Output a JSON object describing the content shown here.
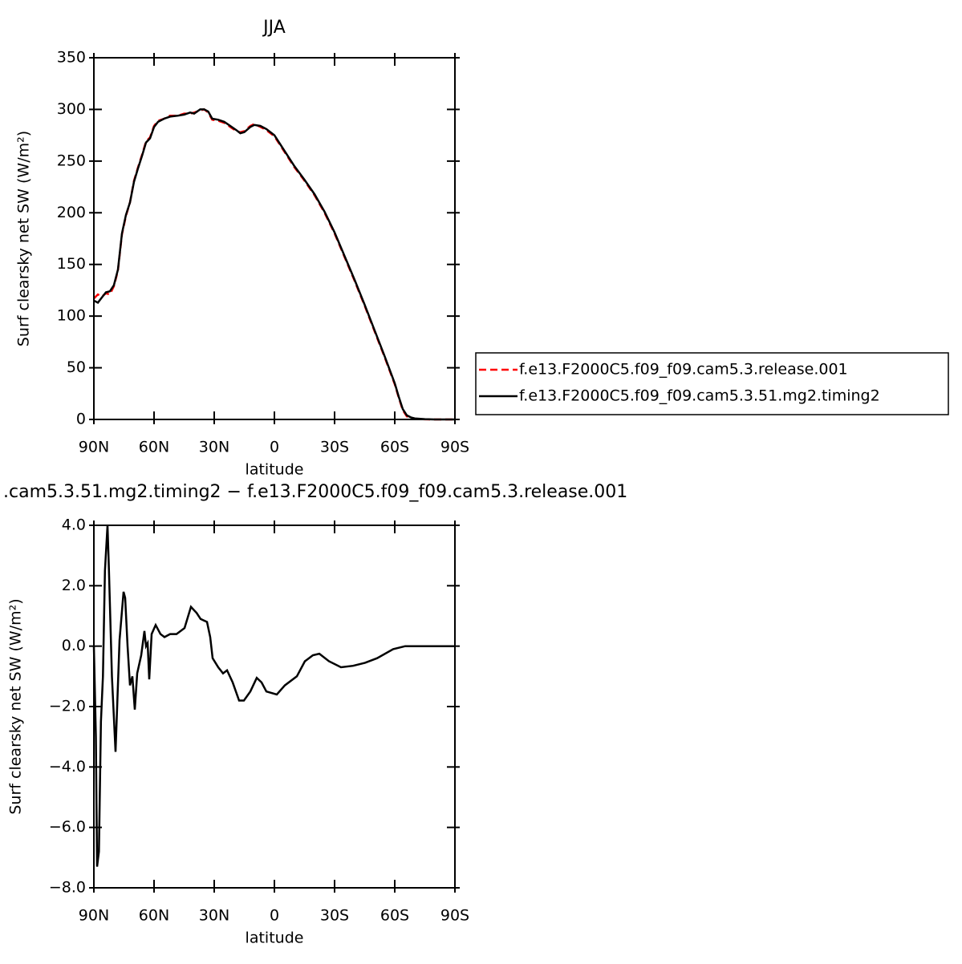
{
  "chart_data": [
    {
      "type": "line",
      "title": "JJA",
      "xlabel": "latitude",
      "ylabel": "Surf clearsky net SW (W/m²)",
      "x": [
        90,
        88,
        86,
        84,
        82,
        80,
        78,
        76,
        74,
        72,
        70,
        68,
        66,
        64,
        62,
        60,
        58,
        55,
        52,
        48,
        45,
        42,
        40,
        37,
        35,
        33,
        31,
        28,
        25,
        22,
        19,
        17,
        15,
        12,
        10,
        7,
        4,
        0,
        -3,
        -6,
        -10,
        -15,
        -20,
        -25,
        -30,
        -35,
        -40,
        -45,
        -50,
        -55,
        -60,
        -62,
        -64,
        -66,
        -68,
        -70,
        -75,
        -80,
        -90
      ],
      "series": [
        {
          "name": "f.e13.F2000C5.f09_f09.cam5.3.release.001",
          "color": "#ff0000",
          "line_style": "dashed",
          "values": [
            117,
            121,
            119,
            122,
            121,
            129,
            144,
            179,
            197,
            210,
            231,
            244,
            256,
            269,
            273,
            284,
            289,
            291,
            294,
            294,
            296,
            296,
            297,
            299,
            300,
            297,
            290,
            289,
            287,
            283,
            279,
            278,
            279,
            284,
            286,
            283,
            280,
            274,
            265,
            256,
            244,
            231,
            217,
            200,
            180,
            157,
            134,
            110,
            85,
            60,
            34,
            21,
            9,
            3,
            1.5,
            0.5,
            0.1,
            0,
            0
          ]
        },
        {
          "name": "f.e13.F2000C5.f09_f09.cam5.3.51.mg2.timing2",
          "color": "#000000",
          "line_style": "solid",
          "values": [
            115,
            113,
            118,
            123,
            124,
            130,
            145,
            180,
            198,
            210,
            230,
            243,
            255,
            268,
            272,
            283,
            288,
            291,
            293,
            294,
            295,
            297,
            296,
            300,
            300,
            298,
            291,
            290,
            288,
            284,
            280,
            277,
            278,
            283,
            285,
            284,
            281,
            275,
            266,
            257,
            245,
            232,
            218,
            201,
            181,
            158,
            135,
            111,
            86,
            61,
            35,
            22,
            10,
            4,
            2,
            1,
            0.3,
            0,
            0
          ]
        }
      ],
      "xlim": [
        90,
        -90
      ],
      "xticks": [
        {
          "value": 90,
          "label": "90N"
        },
        {
          "value": 60,
          "label": "60N"
        },
        {
          "value": 30,
          "label": "30N"
        },
        0,
        {
          "value": -30,
          "label": "30S"
        },
        {
          "value": -60,
          "label": "60S"
        },
        {
          "value": -90,
          "label": "90S"
        }
      ],
      "ylim": [
        0,
        350
      ],
      "yticks": [
        0,
        50,
        100,
        150,
        200,
        250,
        300,
        350
      ],
      "legend": "right"
    },
    {
      "type": "line",
      "title": ".cam5.3.51.mg2.timing2 − f.e13.F2000C5.f09_f09.cam5.3.release.001",
      "xlabel": "latitude",
      "ylabel": "Surf clearsky net SW (W/m²)",
      "x": [
        90,
        89,
        88.4,
        87.5,
        86.5,
        85.5,
        84.5,
        83.2,
        82.5,
        81,
        79.2,
        77.2,
        75.2,
        74.4,
        73.2,
        72,
        70.8,
        69.6,
        68.4,
        66.4,
        64.8,
        64,
        63.2,
        62.4,
        61.2,
        59.2,
        56.8,
        54.8,
        52,
        48.8,
        44.8,
        41.6,
        38.8,
        36.8,
        33.6,
        32,
        30.8,
        28,
        25.6,
        23.6,
        20.8,
        17.6,
        15.2,
        12,
        8.8,
        6.4,
        4,
        -1.2,
        -5.2,
        -11.2,
        -15.2,
        -19.2,
        -22.4,
        -27.2,
        -33.2,
        -39.2,
        -45.2,
        -51.2,
        -59.2,
        -65.2,
        -90
      ],
      "values": [
        0,
        -3,
        -7.3,
        -6.8,
        -2.5,
        -1,
        2.5,
        4,
        2.5,
        -1,
        -3.5,
        0.2,
        1.8,
        1.6,
        0,
        -1.3,
        -1,
        -2.1,
        -0.9,
        -0.3,
        0.5,
        0,
        0.1,
        -1.1,
        0.4,
        0.7,
        0.4,
        0.3,
        0.4,
        0.4,
        0.6,
        1.3,
        1.1,
        0.9,
        0.8,
        0.3,
        -0.4,
        -0.7,
        -0.9,
        -0.8,
        -1.2,
        -1.8,
        -1.8,
        -1.5,
        -1.05,
        -1.2,
        -1.5,
        -1.6,
        -1.3,
        -1,
        -0.5,
        -0.3,
        -0.25,
        -0.5,
        -0.7,
        -0.65,
        -0.55,
        -0.4,
        -0.1,
        0,
        0
      ],
      "color": "#000000",
      "xlim": [
        90,
        -90
      ],
      "xticks": [
        {
          "value": 90,
          "label": "90N"
        },
        {
          "value": 60,
          "label": "60N"
        },
        {
          "value": 30,
          "label": "30N"
        },
        0,
        {
          "value": -30,
          "label": "30S"
        },
        {
          "value": -60,
          "label": "60S"
        },
        {
          "value": -90,
          "label": "90S"
        }
      ],
      "ylim": [
        -8,
        4
      ],
      "yticks": [
        {
          "value": -8,
          "label": "−8.0"
        },
        {
          "value": -6,
          "label": "−6.0"
        },
        {
          "value": -4,
          "label": "−4.0"
        },
        {
          "value": -2,
          "label": "−2.0"
        },
        {
          "value": 0,
          "label": "0.0"
        },
        {
          "value": 2,
          "label": "2.0"
        },
        {
          "value": 4,
          "label": "4.0"
        }
      ]
    }
  ]
}
